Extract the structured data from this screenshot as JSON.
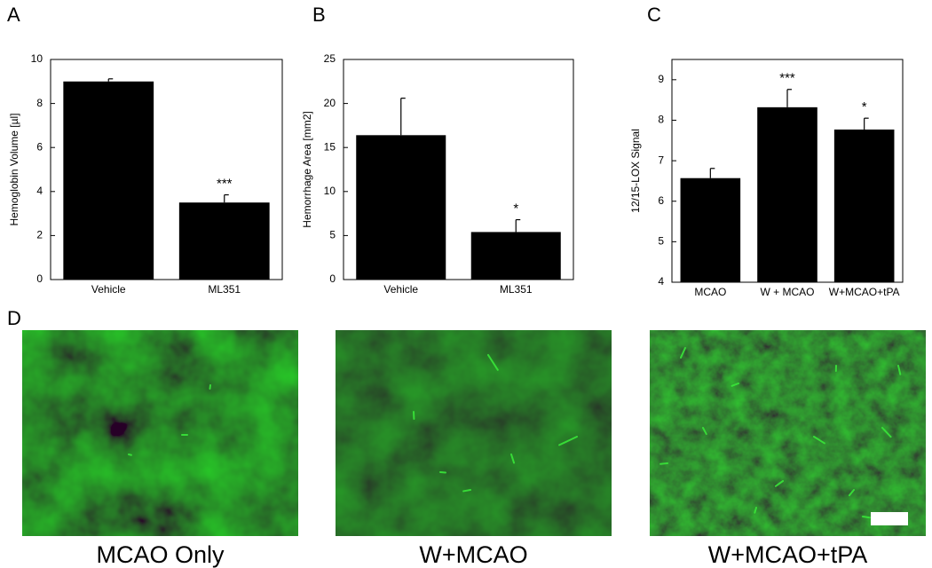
{
  "chart_data": [
    {
      "type": "bar",
      "panel": "A",
      "ylabel": "Hemoglobin Volume [µl]",
      "categories": [
        "Vehicle",
        "ML351"
      ],
      "values": [
        9.0,
        3.5
      ],
      "errors": [
        0.12,
        0.35
      ],
      "annotations": [
        null,
        "***"
      ],
      "color": "#000000",
      "ylim": [
        0,
        10
      ],
      "yticks": [
        0,
        2,
        4,
        6,
        8,
        10
      ]
    },
    {
      "type": "bar",
      "panel": "B",
      "ylabel": "Hemorrhage  Area  [mm2]",
      "categories": [
        "Vehicle",
        "ML351"
      ],
      "values": [
        16.4,
        5.4
      ],
      "errors": [
        4.2,
        1.4
      ],
      "annotations": [
        null,
        "*"
      ],
      "color": "#000000",
      "ylim": [
        0,
        25
      ],
      "yticks": [
        0,
        5,
        10,
        15,
        20,
        25
      ]
    },
    {
      "type": "bar",
      "panel": "C",
      "ylabel": "12/15-LOX Signal",
      "categories": [
        "MCAO",
        "W + MCAO",
        "W+MCAO+tPA"
      ],
      "values": [
        6.57,
        8.32,
        7.77
      ],
      "errors": [
        0.24,
        0.44,
        0.28
      ],
      "annotations": [
        null,
        "***",
        "*"
      ],
      "color": "#000000",
      "ylim": [
        4,
        9.5
      ],
      "yticks": [
        4,
        5,
        6,
        7,
        8,
        9
      ]
    }
  ],
  "panel_d": {
    "label": "D",
    "captions": [
      "MCAO Only",
      "W+MCAO",
      "W+MCAO+tPA"
    ]
  }
}
